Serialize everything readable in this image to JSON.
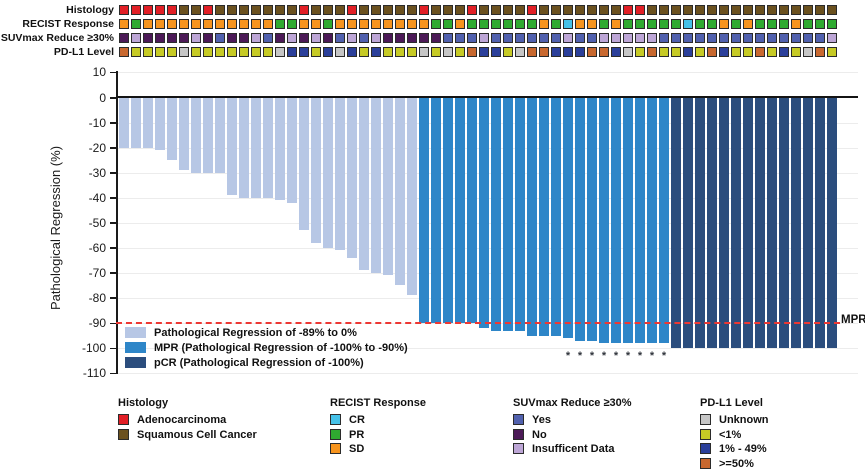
{
  "annotations": {
    "rows": [
      {
        "label": "Histology",
        "palette": {
          "A": "#e21f26",
          "S": "#6b511f"
        },
        "cells": [
          "A",
          "A",
          "A",
          "A",
          "A",
          "S",
          "S",
          "A",
          "S",
          "S",
          "S",
          "S",
          "S",
          "S",
          "S",
          "A",
          "S",
          "S",
          "S",
          "A",
          "S",
          "S",
          "S",
          "S",
          "S",
          "A",
          "S",
          "S",
          "S",
          "A",
          "S",
          "S",
          "S",
          "S",
          "A",
          "S",
          "S",
          "S",
          "S",
          "S",
          "S",
          "S",
          "A",
          "A",
          "S",
          "S",
          "S",
          "S",
          "S",
          "S",
          "S",
          "S",
          "S",
          "S",
          "S",
          "S",
          "S",
          "S",
          "S",
          "S"
        ]
      },
      {
        "label": "RECIST Response",
        "palette": {
          "C": "#45c1e8",
          "P": "#2faa30",
          "S": "#f7941d"
        },
        "cells": [
          "S",
          "P",
          "S",
          "S",
          "S",
          "S",
          "S",
          "S",
          "S",
          "S",
          "S",
          "S",
          "S",
          "P",
          "P",
          "S",
          "S",
          "P",
          "S",
          "S",
          "S",
          "S",
          "S",
          "S",
          "S",
          "S",
          "P",
          "P",
          "S",
          "P",
          "P",
          "P",
          "P",
          "P",
          "P",
          "S",
          "P",
          "C",
          "S",
          "S",
          "P",
          "S",
          "P",
          "P",
          "P",
          "P",
          "P",
          "C",
          "P",
          "P",
          "S",
          "P",
          "S",
          "P",
          "P",
          "P",
          "S",
          "P",
          "P",
          "P"
        ]
      },
      {
        "label": "SUVmax Reduce ≥30%",
        "palette": {
          "Y": "#5161ae",
          "N": "#4c1a57",
          "I": "#bda6d6"
        },
        "cells": [
          "N",
          "I",
          "N",
          "N",
          "N",
          "N",
          "I",
          "N",
          "Y",
          "N",
          "N",
          "I",
          "Y",
          "N",
          "I",
          "N",
          "I",
          "N",
          "Y",
          "I",
          "Y",
          "I",
          "N",
          "N",
          "N",
          "N",
          "N",
          "Y",
          "Y",
          "Y",
          "I",
          "Y",
          "Y",
          "Y",
          "Y",
          "Y",
          "Y",
          "I",
          "Y",
          "Y",
          "I",
          "I",
          "I",
          "I",
          "I",
          "Y",
          "Y",
          "Y",
          "Y",
          "Y",
          "Y",
          "Y",
          "Y",
          "Y",
          "Y",
          "Y",
          "Y",
          "Y",
          "Y",
          "I"
        ]
      },
      {
        "label": "PD-L1 Level",
        "palette": {
          "U": "#c6c6c6",
          "L": "#c6ca25",
          "M": "#2b3f9a",
          "H": "#c8682f"
        },
        "cells": [
          "H",
          "L",
          "L",
          "L",
          "L",
          "U",
          "L",
          "L",
          "L",
          "L",
          "L",
          "L",
          "L",
          "U",
          "M",
          "M",
          "L",
          "M",
          "U",
          "M",
          "L",
          "M",
          "L",
          "L",
          "L",
          "U",
          "L",
          "U",
          "L",
          "H",
          "M",
          "M",
          "L",
          "U",
          "H",
          "H",
          "M",
          "M",
          "M",
          "H",
          "H",
          "M",
          "U",
          "L",
          "H",
          "L",
          "L",
          "M",
          "L",
          "H",
          "M",
          "L",
          "L",
          "H",
          "L",
          "M",
          "L",
          "U",
          "H",
          "L"
        ]
      }
    ]
  },
  "chart_data": {
    "type": "bar",
    "title": "",
    "xlabel": "",
    "ylabel": "Pathological Regression (%)",
    "ylim": [
      -110,
      10
    ],
    "grid": true,
    "yticks": [
      10,
      0,
      -10,
      -20,
      -30,
      -40,
      -50,
      -60,
      -70,
      -80,
      -90,
      -100,
      -110
    ],
    "series": [
      {
        "name": "Pathological Regression (%)",
        "values": [
          -20,
          -20,
          -20,
          -21,
          -25,
          -29,
          -30,
          -30,
          -30,
          -39,
          -40,
          -40,
          -40,
          -41,
          -42,
          -53,
          -58,
          -60,
          -61,
          -64,
          -69,
          -70,
          -71,
          -75,
          -79,
          -90,
          -90,
          -90,
          -90,
          -90,
          -92,
          -93,
          -93,
          -93,
          -95,
          -95,
          -95,
          -96,
          -97,
          -97,
          -98,
          -98,
          -98,
          -98,
          -98,
          -98,
          -100,
          -100,
          -100,
          -100,
          -100,
          -100,
          -100,
          -100,
          -100,
          -100,
          -100,
          -100,
          -100,
          -100
        ]
      }
    ],
    "bar_classes": [
      "light",
      "light",
      "light",
      "light",
      "light",
      "light",
      "light",
      "light",
      "light",
      "light",
      "light",
      "light",
      "light",
      "light",
      "light",
      "light",
      "light",
      "light",
      "light",
      "light",
      "light",
      "light",
      "light",
      "light",
      "light",
      "mpr",
      "mpr",
      "mpr",
      "mpr",
      "mpr",
      "mpr",
      "mpr",
      "mpr",
      "mpr",
      "mpr",
      "mpr",
      "mpr",
      "mpr",
      "mpr",
      "mpr",
      "mpr",
      "mpr",
      "mpr",
      "mpr",
      "mpr",
      "mpr",
      "pcr",
      "pcr",
      "pcr",
      "pcr",
      "pcr",
      "pcr",
      "pcr",
      "pcr",
      "pcr",
      "pcr",
      "pcr",
      "pcr",
      "pcr",
      "pcr"
    ],
    "bar_colors": {
      "light": "#b7c7e5",
      "mpr": "#2e86c8",
      "pcr": "#2b4d7d"
    },
    "asterisk_indices": [
      37,
      38,
      39,
      40,
      41,
      42,
      43,
      44,
      45
    ],
    "asterisk_symbol": "*",
    "reference_line": {
      "value": -90,
      "label": "MPR",
      "color": "#ed3833"
    }
  },
  "plot_legend": [
    {
      "key": "light",
      "label": "Pathological Regression of -89% to 0%"
    },
    {
      "key": "mpr",
      "label": "MPR (Pathological Regression of -100% to -90%)"
    },
    {
      "key": "pcr",
      "label": "pCR (Pathological Regression of -100%)"
    }
  ],
  "legend": {
    "groups": [
      {
        "title": "Histology",
        "items": [
          {
            "label": "Adenocarcinoma",
            "color": "#e21f26"
          },
          {
            "label": "Squamous Cell Cancer",
            "color": "#6b511f"
          }
        ]
      },
      {
        "title": "RECIST Response",
        "items": [
          {
            "label": "CR",
            "color": "#45c1e8"
          },
          {
            "label": "PR",
            "color": "#2faa30"
          },
          {
            "label": "SD",
            "color": "#f7941d"
          }
        ]
      },
      {
        "title": "SUVmax Reduce ≥30%",
        "items": [
          {
            "label": "Yes",
            "color": "#5161ae"
          },
          {
            "label": "No",
            "color": "#4c1a57"
          },
          {
            "label": "Insufficent Data",
            "color": "#bda6d6"
          }
        ]
      },
      {
        "title": "PD-L1 Level",
        "items": [
          {
            "label": "Unknown",
            "color": "#c6c6c6"
          },
          {
            "label": "<1%",
            "color": "#c6ca25"
          },
          {
            "label": "1% - 49%",
            "color": "#2b3f9a"
          },
          {
            "label": ">=50%",
            "color": "#c8682f"
          }
        ]
      }
    ]
  }
}
